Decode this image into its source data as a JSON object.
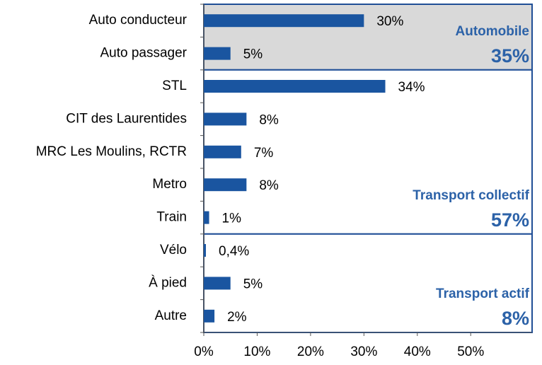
{
  "chart_data": {
    "type": "bar",
    "orientation": "horizontal",
    "categories": [
      "Auto conducteur",
      "Auto passager",
      "STL",
      "CIT des Laurentides",
      "MRC Les Moulins, RCTR",
      "Metro",
      "Train",
      "Vélo",
      "À pied",
      "Autre"
    ],
    "values": [
      30,
      5,
      34,
      8,
      7,
      8,
      1,
      0.4,
      5,
      2
    ],
    "value_labels": [
      "30%",
      "5%",
      "34%",
      "8%",
      "7%",
      "8%",
      "1%",
      "0,4%",
      "5%",
      "2%"
    ],
    "color": "#1a55a0",
    "xlim": [
      0,
      61.5
    ],
    "xticks": [
      {
        "value": 0,
        "label": "0%"
      },
      {
        "value": 10,
        "label": "10%"
      },
      {
        "value": 20,
        "label": "20%"
      },
      {
        "value": 30,
        "label": "30%"
      },
      {
        "value": 40,
        "label": "40%"
      },
      {
        "value": 50,
        "label": "50%"
      }
    ],
    "groups": [
      {
        "name": "Automobile",
        "label": "35%"
      },
      {
        "name": "Transport collectif",
        "label": "57%"
      },
      {
        "name": "Transport actif",
        "label": "8%"
      }
    ]
  }
}
